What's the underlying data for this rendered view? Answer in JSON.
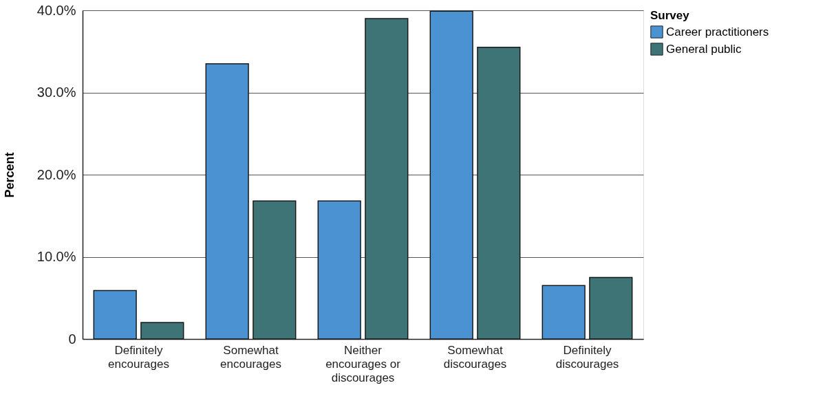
{
  "chart_data": {
    "type": "bar",
    "ylabel": "Percent",
    "legend_title": "Survey",
    "legend": "right",
    "grid": "y",
    "categories": [
      "Definitely\nencourages",
      "Somewhat\nencourages",
      "Neither\nencourages or\ndiscourages",
      "Somewhat\ndiscourages",
      "Definitely\ndiscourages"
    ],
    "series": [
      {
        "name": "Career practitioners",
        "color": "#4a92d2",
        "values": [
          5.9,
          33.5,
          16.8,
          39.9,
          6.5
        ]
      },
      {
        "name": "General public",
        "color": "#3e7476",
        "values": [
          2.0,
          16.8,
          39.0,
          35.5,
          7.5
        ]
      }
    ],
    "ylim": [
      0,
      40
    ],
    "yticks": [
      {
        "value": 0,
        "label": "0"
      },
      {
        "value": 10,
        "label": "10.0%"
      },
      {
        "value": 20,
        "label": "20.0%"
      },
      {
        "value": 30,
        "label": "30.0%"
      },
      {
        "value": 40,
        "label": "40.0%"
      }
    ]
  }
}
